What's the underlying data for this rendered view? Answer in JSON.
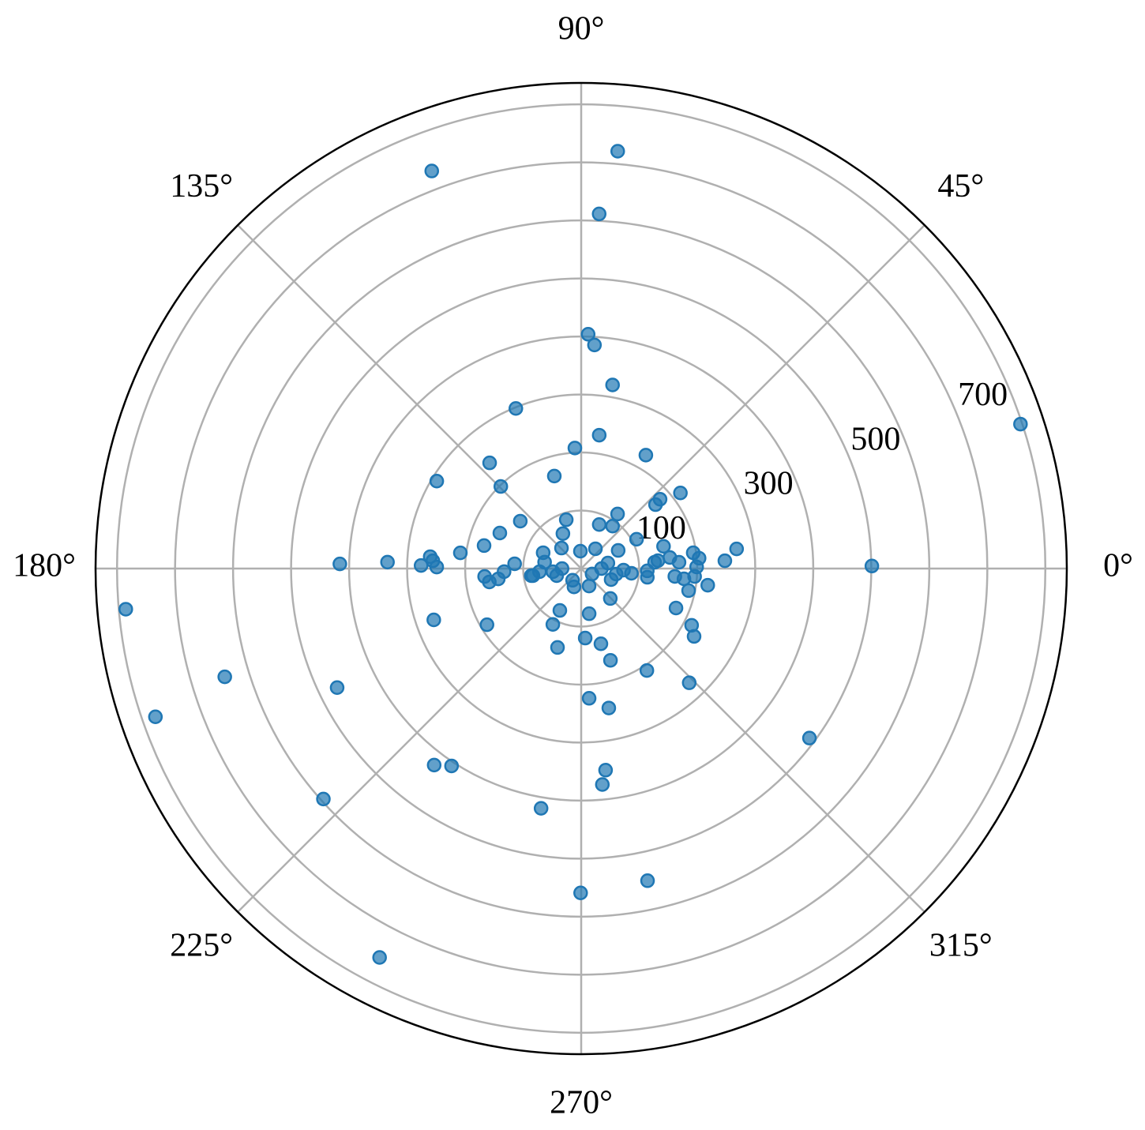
{
  "chart_data": {
    "type": "polar-scatter",
    "xticks": [
      {
        "value": 0,
        "label": "0°"
      },
      {
        "value": 45,
        "label": "45°"
      },
      {
        "value": 90,
        "label": "90°"
      },
      {
        "value": 135,
        "label": "135°"
      },
      {
        "value": 180,
        "label": "180°"
      },
      {
        "value": 225,
        "label": "225°"
      },
      {
        "value": 270,
        "label": "270°"
      },
      {
        "value": 315,
        "label": "315°"
      }
    ],
    "ylim": [
      0,
      837
    ],
    "yticks": [
      100,
      300,
      500,
      700
    ],
    "ygrid": [
      100,
      200,
      300,
      400,
      500,
      600,
      700,
      800
    ],
    "grid": true,
    "color": "#1f77b4",
    "x": [
      18.2,
      85.0,
      110.6,
      87.1,
      88.3,
      86.6,
      80.3,
      112.2,
      82.3,
      93.0,
      60.3,
      130.9,
      148.8,
      106.2,
      134.4,
      37.3,
      41.3,
      40.7,
      56.3,
      142.1,
      107.0,
      67.7,
      53.5,
      27.9,
      156.4,
      117.6,
      166.7,
      172.6,
      133.9,
      54.2,
      7.2,
      15.1,
      8.0,
      5.0,
      3.1,
      0.5,
      178.9,
      178.1,
      175.5,
      179.4,
      178.9,
      175.9,
      157.4,
      92.6,
      26.1,
      4.9,
      3.7,
      184.7,
      187.1,
      188.3,
      188.1,
      196.2,
      248.6,
      294.4,
      339.8,
      352.5,
      355.2,
      348.4,
      352.5,
      314.2,
      243.0,
      280.0,
      337.4,
      185.1,
      199.2,
      210.8,
      243.1,
      332.8,
      329.0,
      273.3,
      284.7,
      253.3,
      287.7,
      302.8,
      196.9,
      206.0,
      313.4,
      273.5,
      281.2,
      199.2,
      323.4,
      233.2,
      236.7,
      276.9,
      275.6,
      221.8,
      260.5,
      282.0,
      269.9,
      242.6,
      177.0,
      170.1,
      188.4,
      180,
      0,
      357.9,
      354.6,
      5.9,
      7.1,
      0.8,
      354.3,
      351.0,
      11.6,
      186.3,
      182.3,
      356.0,
      233.7,
      358.0,
      333.4,
      184.3
    ],
    "values": [
      797,
      722,
      732,
      612,
      404,
      386,
      321,
      298,
      232,
      208,
      225,
      241,
      291,
      166,
      198,
      215,
      181,
      169,
      113,
      133,
      88,
      82,
      91,
      108,
      153,
      68,
      172,
      210,
      49,
      42,
      270,
      147,
      195,
      204,
      248,
      501,
      416,
      334,
      261,
      249,
      276,
      115,
      71,
      30,
      71,
      127,
      169,
      167,
      144,
      160,
      87,
      44,
      34,
      33,
      55,
      115,
      162,
      189,
      220,
      72,
      81,
      79,
      177,
      788,
      269,
      189,
      108,
      214,
      227,
      120,
      134,
      142,
      166,
      209,
      642,
      468,
      271,
      224,
      245,
      777,
      490,
      423,
      407,
      350,
      374,
      596,
      419,
      550,
      559,
      755,
      256,
      64,
      84,
      33,
      35,
      73,
      87,
      133,
      154,
      199,
      178,
      61,
      47,
      49,
      133,
      196,
      25,
      114,
      21,
      72
    ]
  }
}
